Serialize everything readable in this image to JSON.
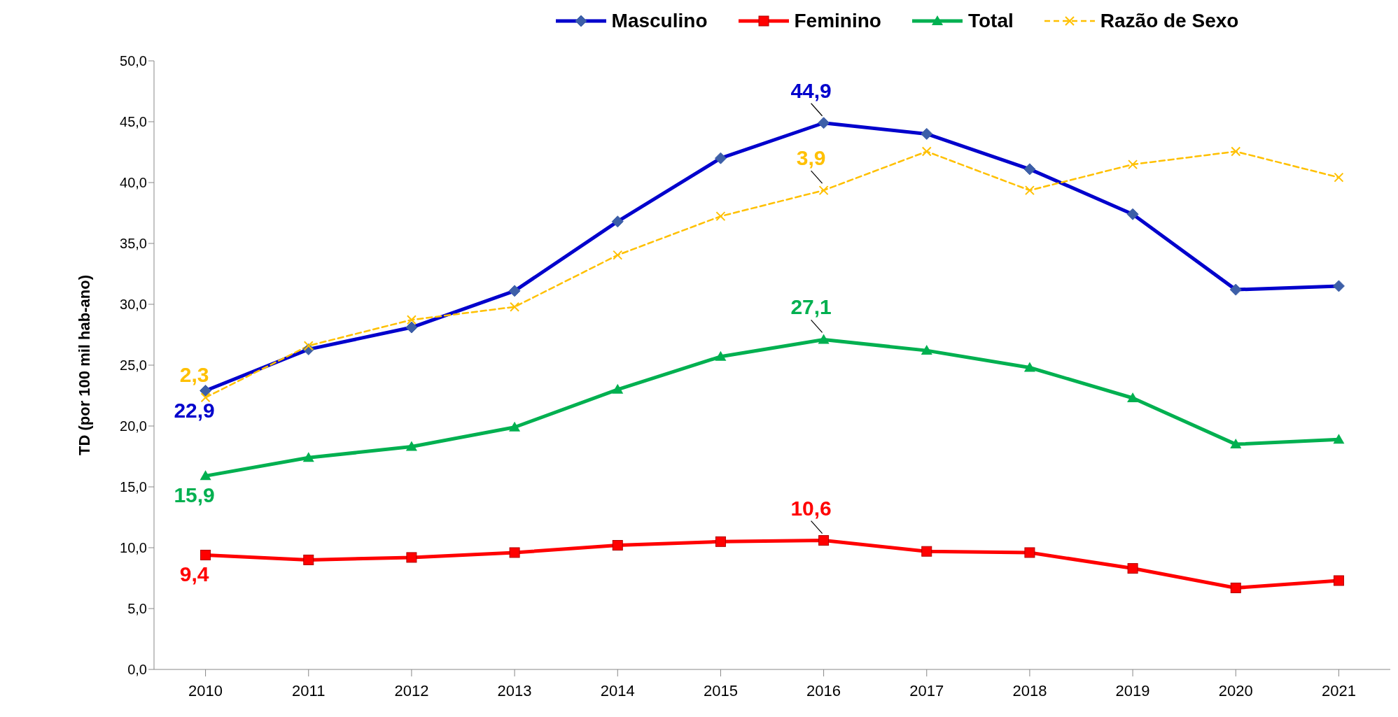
{
  "chart_data": {
    "type": "line",
    "ylabel": "TD (por 100 mil hab-ano)",
    "categories": [
      "2010",
      "2011",
      "2012",
      "2013",
      "2014",
      "2015",
      "2016",
      "2017",
      "2018",
      "2019",
      "2020",
      "2021"
    ],
    "series": [
      {
        "name": "Masculino",
        "color": "#0000cc",
        "marker": "diamond",
        "line_style": "solid",
        "values": [
          22.9,
          26.3,
          28.1,
          31.1,
          36.8,
          42.0,
          44.9,
          44.0,
          41.1,
          37.4,
          31.2,
          31.5
        ],
        "value_labels": [
          "22,9",
          null,
          null,
          null,
          null,
          null,
          "44,9",
          null,
          null,
          null,
          null,
          null
        ]
      },
      {
        "name": "Feminino",
        "color": "#ff0000",
        "marker": "square",
        "line_style": "solid",
        "values": [
          9.4,
          9.0,
          9.2,
          9.6,
          10.2,
          10.5,
          10.6,
          9.7,
          9.6,
          8.3,
          6.7,
          7.3
        ],
        "value_labels": [
          "9,4",
          null,
          null,
          null,
          null,
          null,
          "10,6",
          null,
          null,
          null,
          null,
          null
        ]
      },
      {
        "name": "Total",
        "color": "#00b050",
        "marker": "triangle",
        "line_style": "solid",
        "values": [
          15.9,
          17.4,
          18.3,
          19.9,
          23.0,
          25.7,
          27.1,
          26.2,
          24.8,
          22.3,
          18.5,
          18.9
        ],
        "value_labels": [
          "15,9",
          null,
          null,
          null,
          null,
          null,
          "27,1",
          null,
          null,
          null,
          null,
          null
        ]
      },
      {
        "name": "Razão de Sexo",
        "color": "#ffc000",
        "marker": "cross",
        "line_style": "dashed",
        "axis": "y2",
        "values": [
          2.3,
          2.7,
          2.9,
          3.0,
          3.4,
          3.7,
          3.9,
          4.2,
          3.9,
          4.1,
          4.2,
          4.0
        ],
        "value_labels": [
          "2,3",
          null,
          null,
          null,
          null,
          null,
          "3,9",
          null,
          null,
          null,
          null,
          null
        ]
      }
    ],
    "ylim": [
      0,
      50
    ],
    "yticks": [
      {
        "value": 0,
        "label": "0,0"
      },
      {
        "value": 5,
        "label": "5,0"
      },
      {
        "value": 10,
        "label": "10,0"
      },
      {
        "value": 15,
        "label": "15,0"
      },
      {
        "value": 20,
        "label": "20,0"
      },
      {
        "value": 25,
        "label": "25,0"
      },
      {
        "value": 30,
        "label": "30,0"
      },
      {
        "value": 35,
        "label": "35,0"
      },
      {
        "value": 40,
        "label": "40,0"
      },
      {
        "value": 45,
        "label": "45,0"
      },
      {
        "value": 50,
        "label": "50,0"
      }
    ],
    "y2lim": [
      0.2,
      4.9
    ],
    "grid": false,
    "legend": "top"
  }
}
